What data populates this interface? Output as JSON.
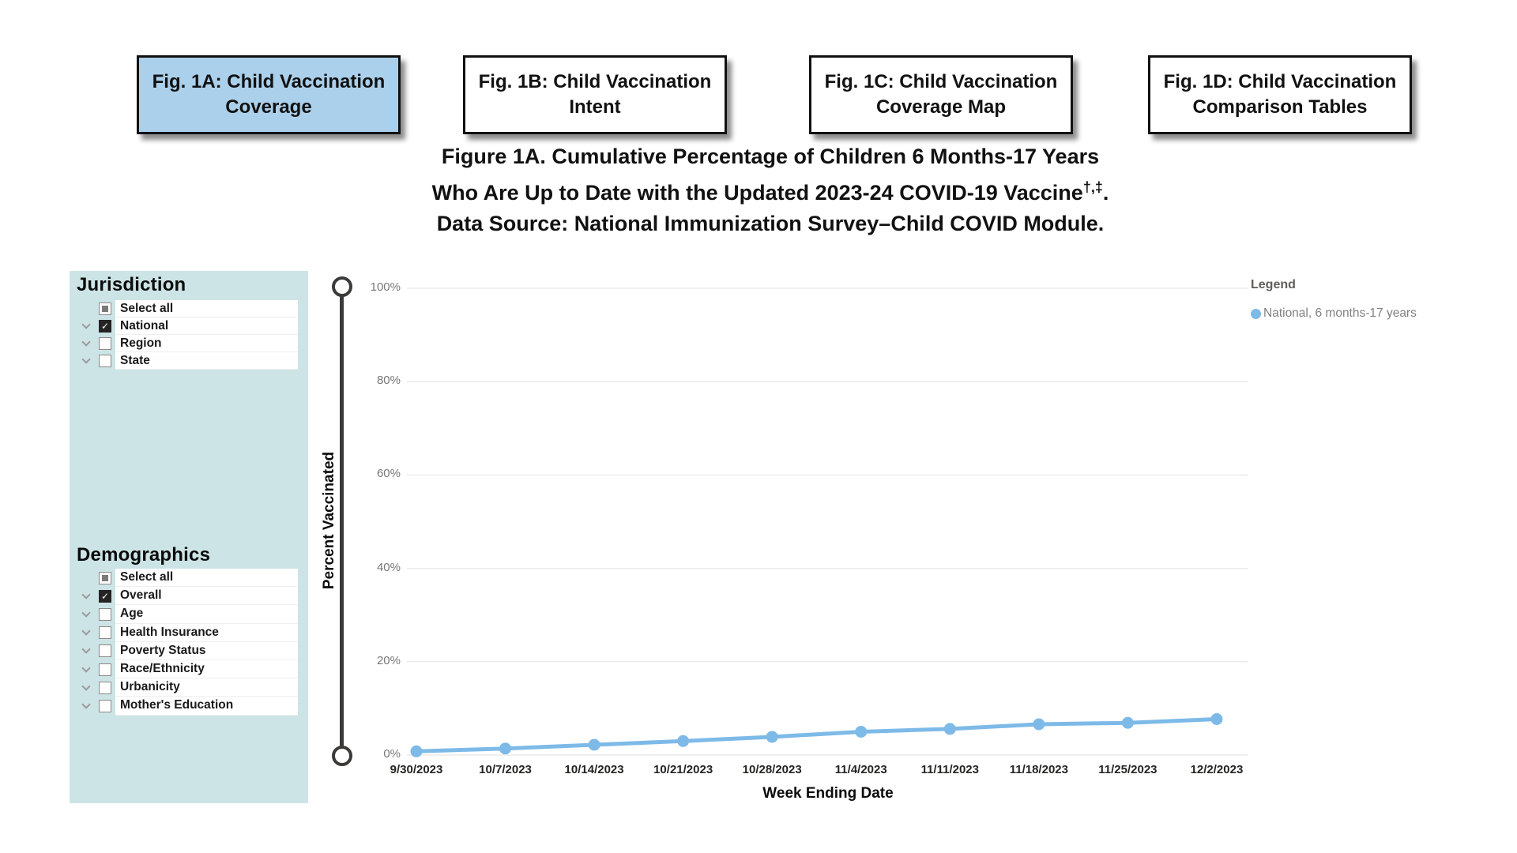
{
  "tabs": [
    {
      "label": "Fig. 1A: Child Vaccination Coverage",
      "active": true
    },
    {
      "label": "Fig. 1B: Child Vaccination Intent",
      "active": false
    },
    {
      "label": "Fig. 1C: Child Vaccination Coverage Map",
      "active": false
    },
    {
      "label": "Fig. 1D: Child Vaccination Comparison Tables",
      "active": false
    }
  ],
  "title": {
    "line1": "Figure 1A. Cumulative Percentage of Children 6 Months-17 Years",
    "line2": "Who Are Up to Date with the Updated 2023-24 COVID-19 Vaccine",
    "line2_superscript": "†,‡",
    "line2_suffix": ".",
    "line3": "Data Source: National Immunization Survey–Child COVID Module."
  },
  "filters": {
    "jurisdiction": {
      "heading": "Jurisdiction",
      "items": [
        {
          "label": "Select all",
          "state": "partial",
          "expandable": false
        },
        {
          "label": "National",
          "state": "checked",
          "expandable": true
        },
        {
          "label": "Region",
          "state": "unchecked",
          "expandable": true
        },
        {
          "label": "State",
          "state": "unchecked",
          "expandable": true
        }
      ]
    },
    "demographics": {
      "heading": "Demographics",
      "items": [
        {
          "label": "Select all",
          "state": "partial",
          "expandable": false
        },
        {
          "label": "Overall",
          "state": "checked",
          "expandable": true
        },
        {
          "label": "Age",
          "state": "unchecked",
          "expandable": true
        },
        {
          "label": "Health Insurance",
          "state": "unchecked",
          "expandable": true
        },
        {
          "label": "Poverty Status",
          "state": "unchecked",
          "expandable": true
        },
        {
          "label": "Race/Ethnicity",
          "state": "unchecked",
          "expandable": true
        },
        {
          "label": "Urbanicity",
          "state": "unchecked",
          "expandable": true
        },
        {
          "label": "Mother's Education",
          "state": "unchecked",
          "expandable": true
        }
      ]
    }
  },
  "chart_data": {
    "type": "line",
    "xlabel": "Week Ending Date",
    "ylabel": "Percent Vaccinated",
    "ylim": [
      0,
      100
    ],
    "yticks": [
      "0%",
      "20%",
      "40%",
      "60%",
      "80%",
      "100%"
    ],
    "categories": [
      "9/30/2023",
      "10/7/2023",
      "10/14/2023",
      "10/21/2023",
      "10/28/2023",
      "11/4/2023",
      "11/11/2023",
      "11/18/2023",
      "11/25/2023",
      "12/2/2023"
    ],
    "series": [
      {
        "name": "National, 6 months-17 years",
        "values": [
          0.8,
          1.4,
          2.2,
          3.0,
          3.9,
          5.0,
          5.6,
          6.6,
          6.9,
          7.7
        ]
      }
    ],
    "legend": {
      "title": "Legend"
    },
    "legend_position": "right",
    "grid": true
  },
  "colors": {
    "active_tab": "#abd0eb",
    "sidebar_bg": "#cde4e6",
    "series_blue": "#7dbae8",
    "gridline": "#e2e2e2",
    "slider": "#3b3a39",
    "axis_tick_text": "#777777",
    "legend_text": "#808080",
    "checked_checkbox": "#252423"
  }
}
